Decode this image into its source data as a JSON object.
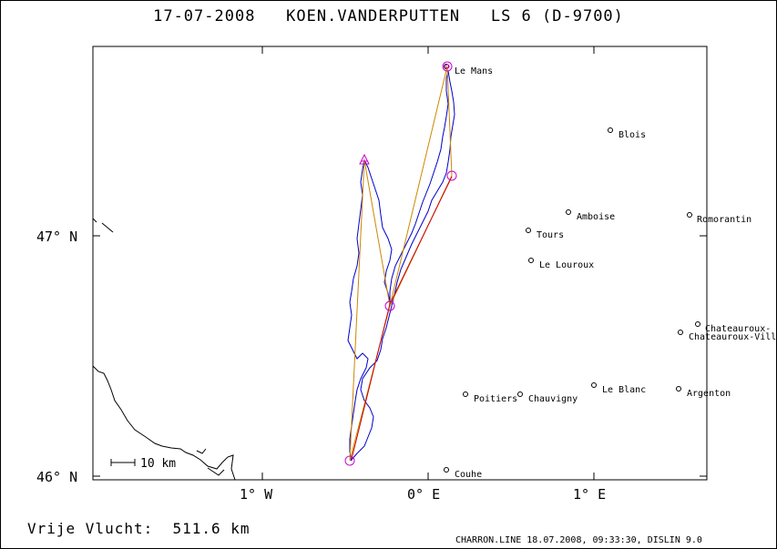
{
  "header": {
    "title": "17-07-2008   KOEN.VANDERPUTTEN   LS 6 (D-9700)"
  },
  "footer": {
    "distance": "Vrije Vlucht:  511.6 km",
    "credit": "CHARRON.LINE 18.07.2008, 09:33:30, DISLIN 9.0"
  },
  "axes": {
    "lat_labels": [
      "47° N",
      "46° N"
    ],
    "lon_labels": [
      "1° W",
      "0° E",
      "1° E"
    ],
    "scale_label": "10 km"
  },
  "towns": [
    {
      "name": "Le Mans"
    },
    {
      "name": "Blois"
    },
    {
      "name": "Amboise"
    },
    {
      "name": "Romorantin"
    },
    {
      "name": "Tours"
    },
    {
      "name": "Le Louroux"
    },
    {
      "name": "Chateauroux-"
    },
    {
      "name": "Chateauroux-Ville"
    },
    {
      "name": "Le Blanc"
    },
    {
      "name": "Poitiers"
    },
    {
      "name": "Chauvigny"
    },
    {
      "name": "Argenton"
    },
    {
      "name": "Couhe"
    }
  ],
  "colors": {
    "track": "#0000cc",
    "task_line": "#cc0000",
    "free_line": "#cc8800",
    "turnpoint": "#cc00cc",
    "coast": "#000000"
  }
}
